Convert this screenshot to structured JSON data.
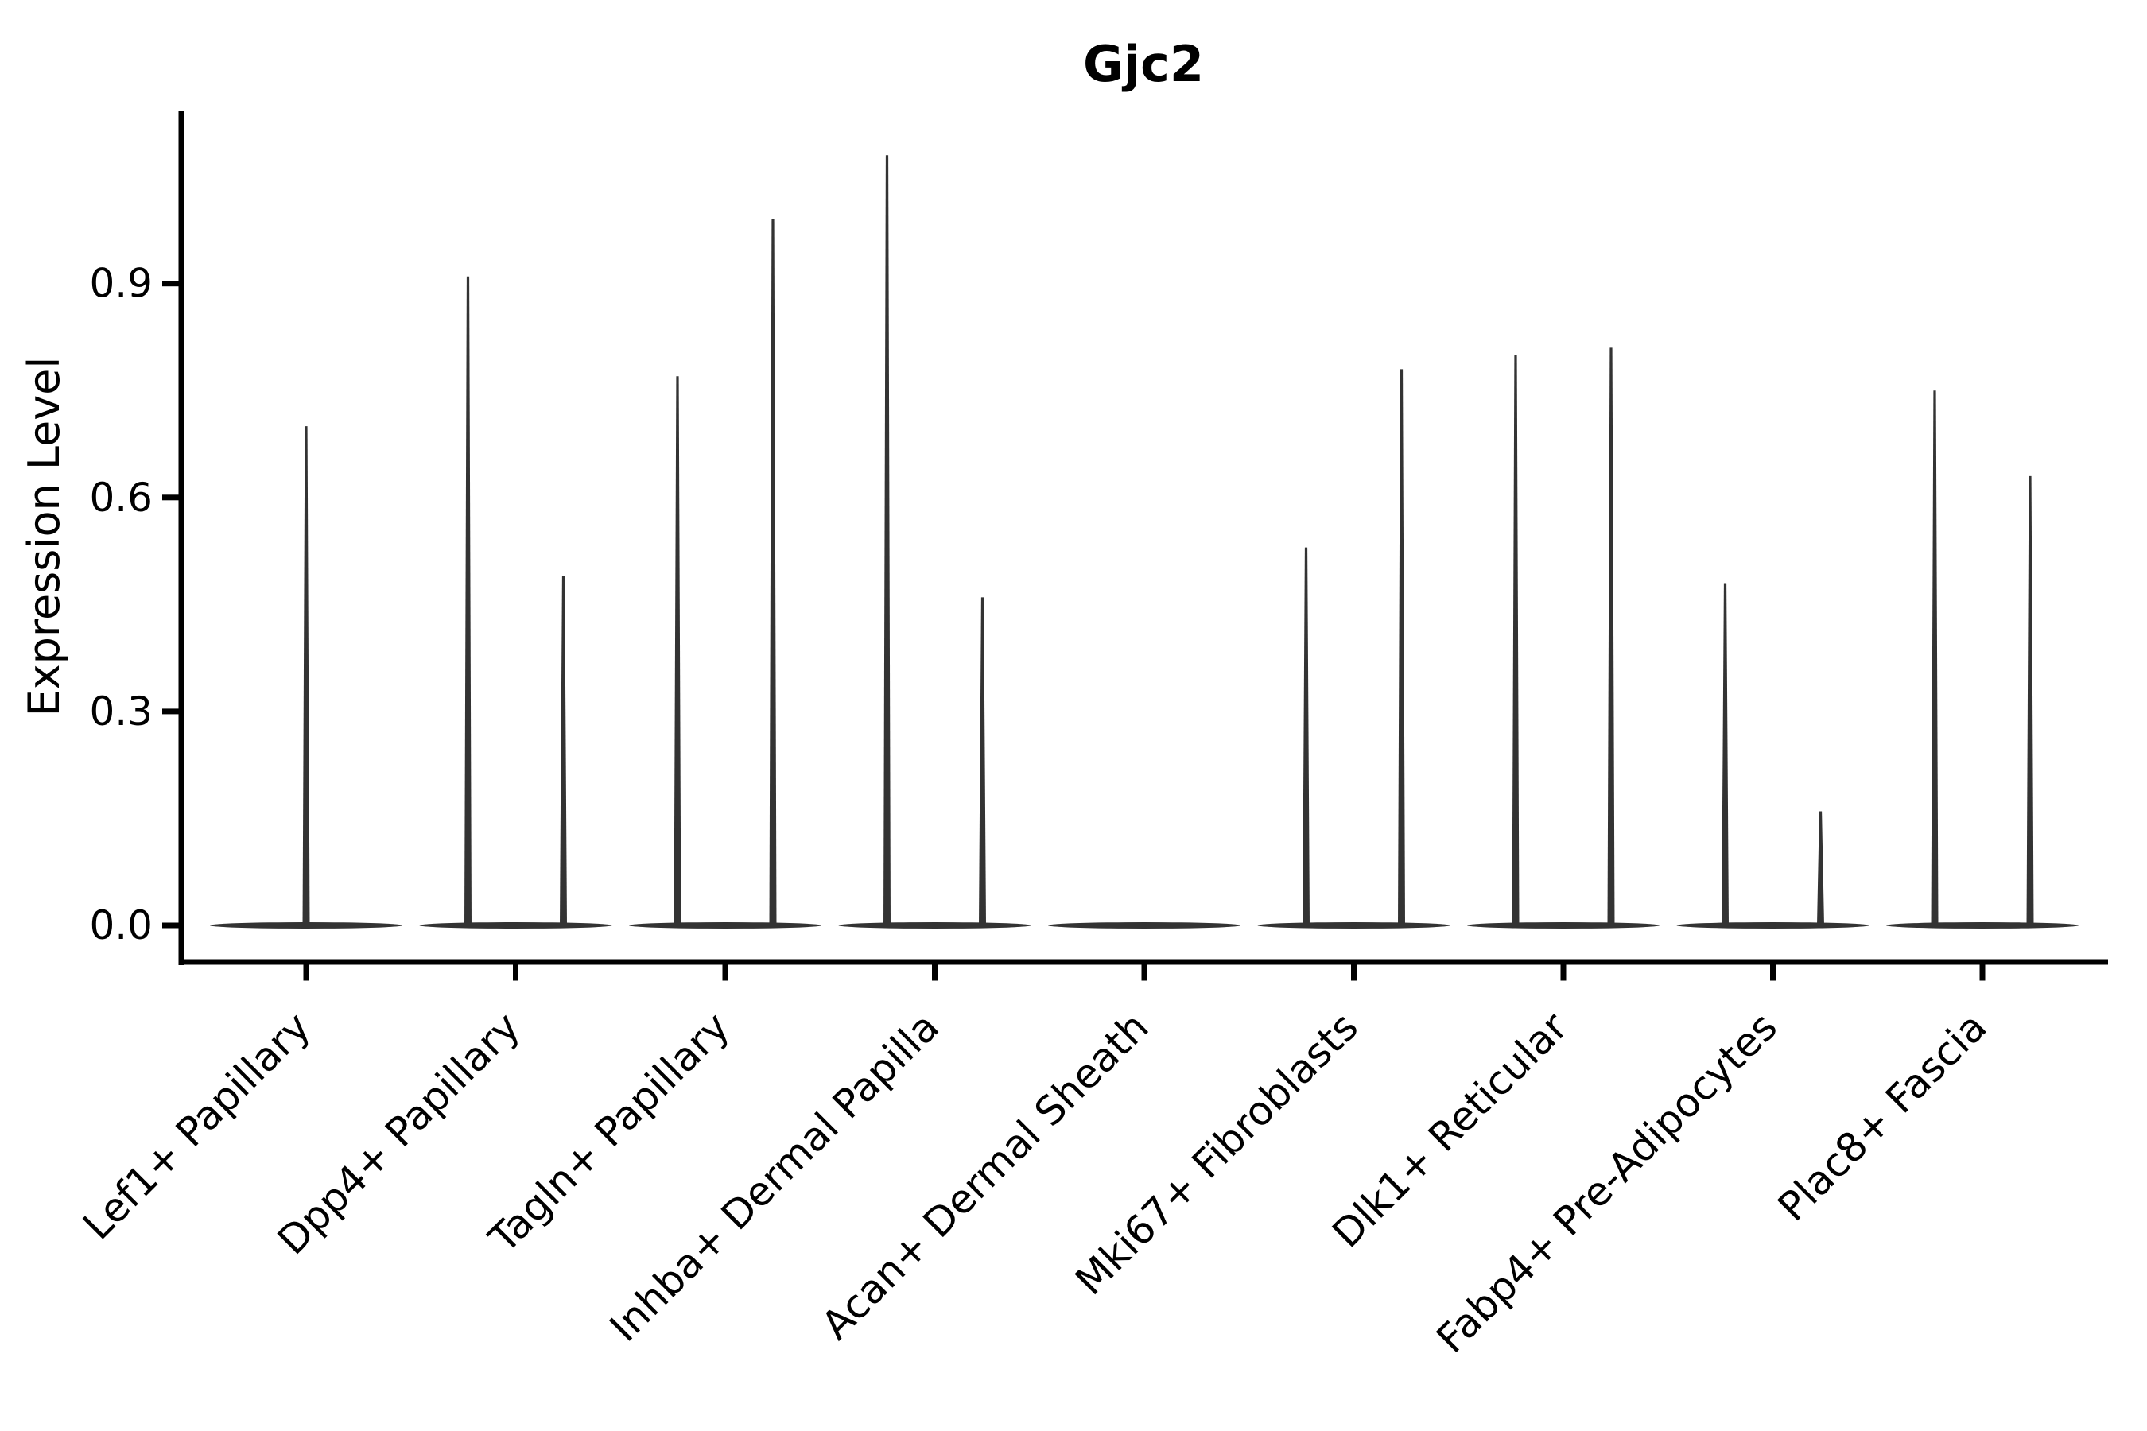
{
  "chart_data": {
    "type": "violin",
    "title": "Gjc2",
    "ylabel": "Expression Level",
    "xlabel": "",
    "background": "#ffffff",
    "axis_color": "#000000",
    "violin_color": "#333333",
    "grid": false,
    "legend": null,
    "ylim": [
      0.0,
      1.14
    ],
    "yticks": [
      {
        "value": 0.9,
        "label": "0.9"
      },
      {
        "value": 0.6,
        "label": "0.6"
      },
      {
        "value": 0.3,
        "label": "0.3"
      },
      {
        "value": 0.0,
        "label": "0.0"
      }
    ],
    "categories": [
      "Lef1+ Papillary",
      "Dpp4+ Papillary",
      "Tagln+ Papillary",
      "Inhba+ Dermal Papilla",
      "Acan+ Dermal Sheath",
      "Mki67+ Fibroblasts",
      "Dlk1+ Reticular",
      "Fabp4+ Pre-Adipocytes",
      "Plac8+ Fascia"
    ],
    "violins": [
      {
        "category": "Lef1+ Papillary",
        "spikes": [
          {
            "side": 0,
            "max": 0.7
          }
        ]
      },
      {
        "category": "Dpp4+ Papillary",
        "spikes": [
          {
            "side": -1,
            "max": 0.91
          },
          {
            "side": 1,
            "max": 0.49
          }
        ]
      },
      {
        "category": "Tagln+ Papillary",
        "spikes": [
          {
            "side": -1,
            "max": 0.77
          },
          {
            "side": 1,
            "max": 0.99
          }
        ]
      },
      {
        "category": "Inhba+ Dermal Papilla",
        "spikes": [
          {
            "side": -1,
            "max": 1.08
          },
          {
            "side": 1,
            "max": 0.46
          }
        ]
      },
      {
        "category": "Acan+ Dermal Sheath",
        "spikes": []
      },
      {
        "category": "Mki67+ Fibroblasts",
        "spikes": [
          {
            "side": -1,
            "max": 0.53
          },
          {
            "side": 1,
            "max": 0.78
          }
        ]
      },
      {
        "category": "Dlk1+ Reticular",
        "spikes": [
          {
            "side": -1,
            "max": 0.8
          },
          {
            "side": 1,
            "max": 0.81
          }
        ]
      },
      {
        "category": "Fabp4+ Pre-Adipocytes",
        "spikes": [
          {
            "side": -1,
            "max": 0.48
          },
          {
            "side": 1,
            "max": 0.16
          }
        ]
      },
      {
        "category": "Plac8+ Fascia",
        "spikes": [
          {
            "side": -1,
            "max": 0.75
          },
          {
            "side": 1,
            "max": 0.63
          }
        ]
      }
    ]
  }
}
